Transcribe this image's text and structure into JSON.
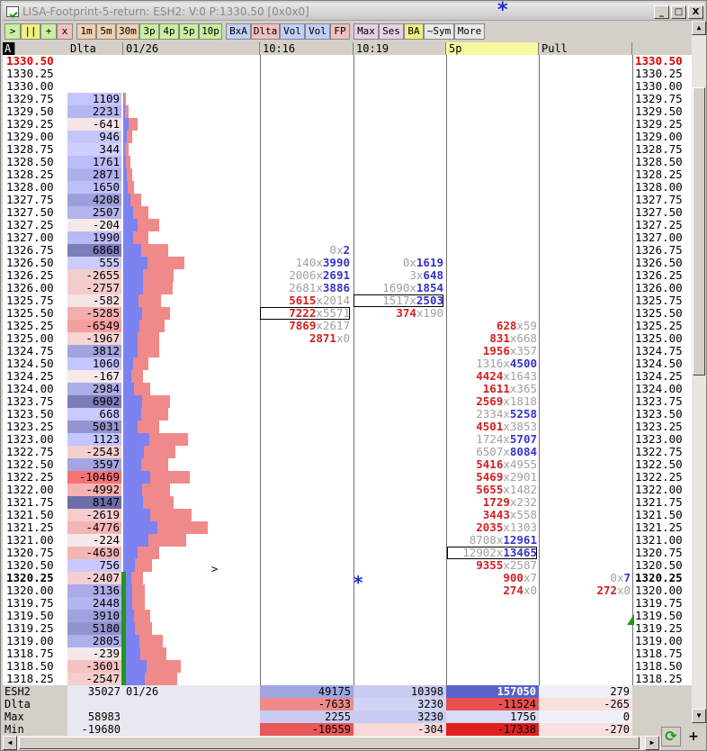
{
  "window": {
    "title": "LISA-Footprint-5-return: ESH2: V:0 P:1330.50 [0x0x0]",
    "min": "_",
    "max": "□",
    "close": "X"
  },
  "toolbar": [
    {
      "label": ">",
      "bg": "#c8f0a0"
    },
    {
      "label": "||",
      "bg": "#f0f080"
    },
    {
      "label": "+",
      "bg": "#c8f0a0"
    },
    {
      "label": "x",
      "bg": "#f0c0c0"
    },
    {
      "label": "1m",
      "bg": "#f0d0b0"
    },
    {
      "label": "5m",
      "bg": "#f0d0b0"
    },
    {
      "label": "30m",
      "bg": "#f0d0b0"
    },
    {
      "label": "3p",
      "bg": "#c8f0a0"
    },
    {
      "label": "4p",
      "bg": "#c8f0a0"
    },
    {
      "label": "5p",
      "bg": "#c8f0a0"
    },
    {
      "label": "10p",
      "bg": "#c8f0a0"
    },
    {
      "label": "BxA",
      "bg": "#c0d0f8"
    },
    {
      "label": "Dlta",
      "bg": "#f0c0c0"
    },
    {
      "label": "Vol",
      "bg": "#c0d0f8"
    },
    {
      "label": "Vol",
      "bg": "#c0d0f8"
    },
    {
      "label": "FP",
      "bg": "#f0c0c0"
    },
    {
      "label": "Max",
      "bg": "#e8d0e8"
    },
    {
      "label": "Ses",
      "bg": "#e8d0e8"
    },
    {
      "label": "BA",
      "bg": "#f0f080"
    },
    {
      "label": "~Sym",
      "bg": "#e8e8e8"
    },
    {
      "label": "More",
      "bg": "#e8e8e8"
    }
  ],
  "header": {
    "corner": "A",
    "dlta": "Dlta",
    "date": "01/26",
    "c1": "10:16",
    "c2": "10:19",
    "c3": "5p",
    "c4": "Pull"
  },
  "rows": [
    {
      "p": "1330.50",
      "d": "",
      "v": 0,
      "red": true
    },
    {
      "p": "1330.25",
      "d": "",
      "v": 0
    },
    {
      "p": "1330.00",
      "d": "",
      "v": 0
    },
    {
      "p": "1329.75",
      "d": "1109",
      "v": 3
    },
    {
      "p": "1329.50",
      "d": "2231",
      "v": 6
    },
    {
      "p": "1329.25",
      "d": "-641",
      "v": 16
    },
    {
      "p": "1329.00",
      "d": "946",
      "v": 10
    },
    {
      "p": "1328.75",
      "d": "344",
      "v": 6
    },
    {
      "p": "1328.50",
      "d": "1761",
      "v": 8
    },
    {
      "p": "1328.25",
      "d": "2871",
      "v": 10
    },
    {
      "p": "1328.00",
      "d": "1650",
      "v": 12
    },
    {
      "p": "1327.75",
      "d": "4208",
      "v": 20
    },
    {
      "p": "1327.50",
      "d": "2507",
      "v": 28
    },
    {
      "p": "1327.25",
      "d": "-204",
      "v": 40
    },
    {
      "p": "1327.00",
      "d": "1990",
      "v": 28
    },
    {
      "p": "1326.75",
      "d": "6868",
      "v": 50
    },
    {
      "p": "1326.50",
      "d": "555",
      "v": 68
    },
    {
      "p": "1326.25",
      "d": "-2655",
      "v": 56
    },
    {
      "p": "1326.00",
      "d": "-2757",
      "v": 55
    },
    {
      "p": "1325.75",
      "d": "-582",
      "v": 42
    },
    {
      "p": "1325.50",
      "d": "-5285",
      "v": 52
    },
    {
      "p": "1325.25",
      "d": "-6549",
      "v": 46
    },
    {
      "p": "1325.00",
      "d": "-1967",
      "v": 40
    },
    {
      "p": "1324.75",
      "d": "3812",
      "v": 40
    },
    {
      "p": "1324.50",
      "d": "1060",
      "v": 28
    },
    {
      "p": "1324.25",
      "d": "-167",
      "v": 22
    },
    {
      "p": "1324.00",
      "d": "2984",
      "v": 30
    },
    {
      "p": "1323.75",
      "d": "6902",
      "v": 52
    },
    {
      "p": "1323.50",
      "d": "668",
      "v": 50
    },
    {
      "p": "1323.25",
      "d": "5031",
      "v": 40
    },
    {
      "p": "1323.00",
      "d": "1123",
      "v": 72
    },
    {
      "p": "1322.75",
      "d": "-2543",
      "v": 58
    },
    {
      "p": "1322.50",
      "d": "3597",
      "v": 50
    },
    {
      "p": "1322.25",
      "d": "-10469",
      "v": 74
    },
    {
      "p": "1322.00",
      "d": "-4992",
      "v": 52
    },
    {
      "p": "1321.75",
      "d": "8147",
      "v": 56
    },
    {
      "p": "1321.50",
      "d": "-2619",
      "v": 76
    },
    {
      "p": "1321.25",
      "d": "-4776",
      "v": 94
    },
    {
      "p": "1321.00",
      "d": "-224",
      "v": 70
    },
    {
      "p": "1320.75",
      "d": "-4630",
      "v": 40
    },
    {
      "p": "1320.50",
      "d": "756",
      "v": 32
    },
    {
      "p": "1320.25",
      "d": "-2407",
      "v": 22,
      "bold": true
    },
    {
      "p": "1320.00",
      "d": "3136",
      "v": 24
    },
    {
      "p": "1319.75",
      "d": "2448",
      "v": 24
    },
    {
      "p": "1319.50",
      "d": "3910",
      "v": 30
    },
    {
      "p": "1319.25",
      "d": "5180",
      "v": 32
    },
    {
      "p": "1319.00",
      "d": "2805",
      "v": 44
    },
    {
      "p": "1318.75",
      "d": "-239",
      "v": 48
    },
    {
      "p": "1318.50",
      "d": "-3601",
      "v": 64
    },
    {
      "p": "1318.25",
      "d": "-2547",
      "v": 60
    }
  ],
  "fp1": [
    {
      "i": 15,
      "b": "0",
      "a": "2",
      "bs": 0,
      "as": 1
    },
    {
      "i": 16,
      "b": "140",
      "a": "3990",
      "bs": 0,
      "as": 1
    },
    {
      "i": 17,
      "b": "2006",
      "a": "2691",
      "bs": 0,
      "as": 1
    },
    {
      "i": 18,
      "b": "2681",
      "a": "3886",
      "bs": 0,
      "as": 1
    },
    {
      "i": 19,
      "b": "5615",
      "a": "2014",
      "bs": 1,
      "as": 0
    },
    {
      "i": 20,
      "b": "7222",
      "a": "5571",
      "bs": 1,
      "as": 0,
      "box": true
    },
    {
      "i": 21,
      "b": "7869",
      "a": "2617",
      "bs": 1,
      "as": 0
    },
    {
      "i": 22,
      "b": "2871",
      "a": "0",
      "bs": 1,
      "as": 0
    }
  ],
  "fp2": [
    {
      "i": 16,
      "b": "0",
      "a": "1619",
      "bs": 0,
      "as": 1
    },
    {
      "i": 17,
      "b": "3",
      "a": "648",
      "bs": 0,
      "as": 1
    },
    {
      "i": 18,
      "b": "1690",
      "a": "1854",
      "bs": 0,
      "as": 1
    },
    {
      "i": 19,
      "b": "1517",
      "a": "2503",
      "bs": 0,
      "as": 1,
      "box": true
    },
    {
      "i": 20,
      "b": "374",
      "a": "190",
      "bs": 1,
      "as": 0
    }
  ],
  "fp3": [
    {
      "i": 21,
      "b": "628",
      "a": "59",
      "bs": 1,
      "as": 0
    },
    {
      "i": 22,
      "b": "831",
      "a": "668",
      "bs": 1,
      "as": 0
    },
    {
      "i": 23,
      "b": "1956",
      "a": "357",
      "bs": 1,
      "as": 0
    },
    {
      "i": 24,
      "b": "1316",
      "a": "4500",
      "bs": 0,
      "as": 1
    },
    {
      "i": 25,
      "b": "4424",
      "a": "1643",
      "bs": 1,
      "as": 0
    },
    {
      "i": 26,
      "b": "1611",
      "a": "365",
      "bs": 1,
      "as": 0
    },
    {
      "i": 27,
      "b": "2569",
      "a": "1818",
      "bs": 1,
      "as": 0
    },
    {
      "i": 28,
      "b": "2334",
      "a": "5258",
      "bs": 0,
      "as": 1
    },
    {
      "i": 29,
      "b": "4501",
      "a": "3853",
      "bs": 1,
      "as": 0
    },
    {
      "i": 30,
      "b": "1724",
      "a": "5707",
      "bs": 0,
      "as": 1
    },
    {
      "i": 31,
      "b": "6507",
      "a": "8084",
      "bs": 0,
      "as": 1
    },
    {
      "i": 32,
      "b": "5416",
      "a": "4955",
      "bs": 1,
      "as": 0
    },
    {
      "i": 33,
      "b": "5469",
      "a": "2901",
      "bs": 1,
      "as": 0
    },
    {
      "i": 34,
      "b": "5655",
      "a": "1482",
      "bs": 1,
      "as": 0
    },
    {
      "i": 35,
      "b": "1729",
      "a": "232",
      "bs": 1,
      "as": 0
    },
    {
      "i": 36,
      "b": "3443",
      "a": "558",
      "bs": 1,
      "as": 0
    },
    {
      "i": 37,
      "b": "2035",
      "a": "1303",
      "bs": 1,
      "as": 0
    },
    {
      "i": 38,
      "b": "8708",
      "a": "12961",
      "bs": 0,
      "as": 1
    },
    {
      "i": 39,
      "b": "12902",
      "a": "13465",
      "bs": 0,
      "as": 1,
      "box": true
    },
    {
      "i": 40,
      "b": "9355",
      "a": "2587",
      "bs": 1,
      "as": 0
    },
    {
      "i": 41,
      "b": "900",
      "a": "7",
      "bs": 1,
      "as": 0
    },
    {
      "i": 42,
      "b": "274",
      "a": "0",
      "bs": 1,
      "as": 0
    }
  ],
  "fp4": [
    {
      "i": 41,
      "b": "0",
      "a": "7",
      "bs": 0,
      "as": 1
    },
    {
      "i": 42,
      "b": "272",
      "a": "0",
      "bs": 1,
      "as": 0
    }
  ],
  "footer": {
    "r0": {
      "label": "ESH2",
      "v0": "35027",
      "date": "01/26",
      "c1": "49175",
      "c2": "10398",
      "c3": "157050",
      "c4": "279"
    },
    "r1": {
      "label": "Dlta",
      "c1": "-7633",
      "c2": "3230",
      "c3": "-11524",
      "c4": "-265"
    },
    "r2": {
      "label": "Max",
      "v0": "58983",
      "c1": "2255",
      "c2": "3230",
      "c3": "1756",
      "c4": "0"
    },
    "r3": {
      "label": "Min",
      "v0": "-19680",
      "c1": "-10559",
      "c2": "-304",
      "c3": "-17338",
      "c4": "-270"
    }
  },
  "markers": {
    "arrow": ">",
    "star": "*",
    "refresh": "⟳",
    "plus": "+"
  }
}
